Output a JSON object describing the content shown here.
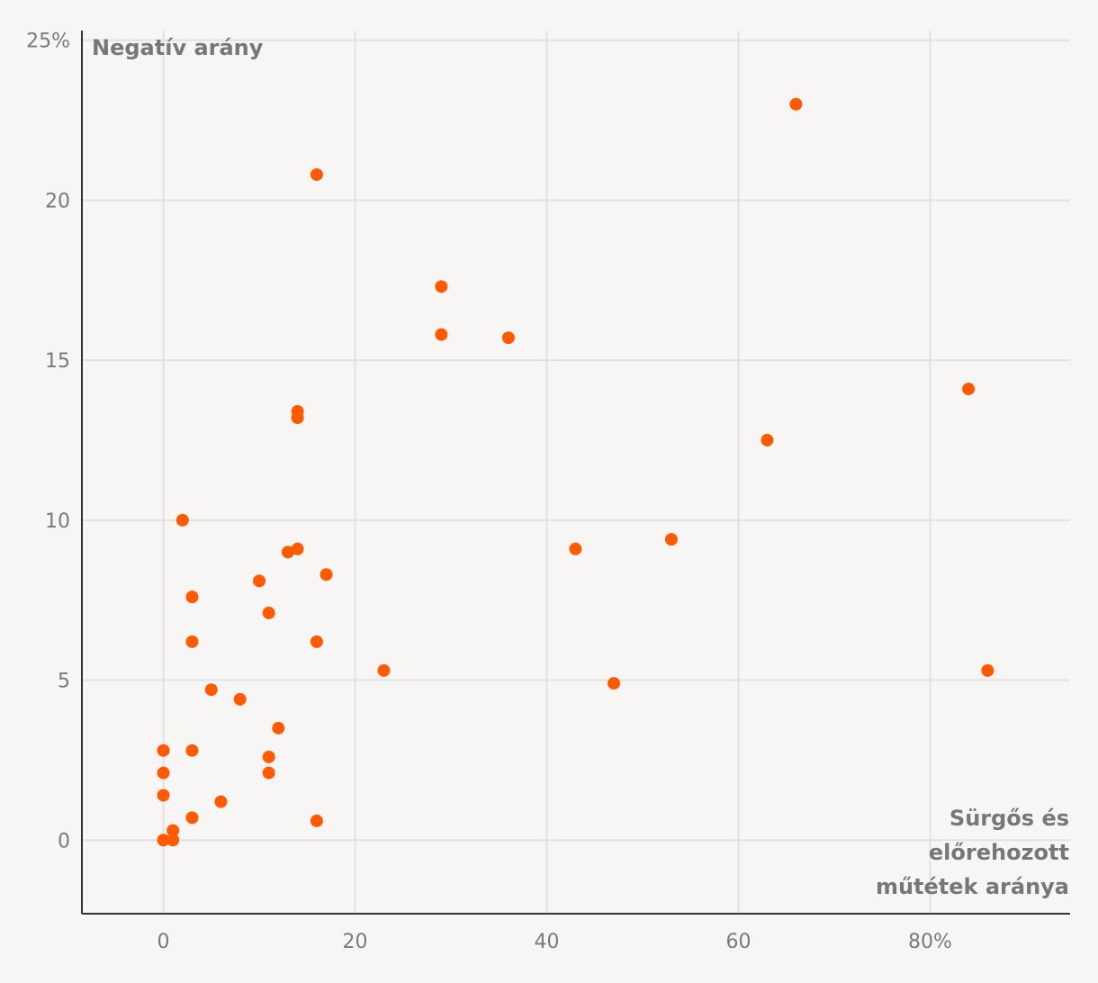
{
  "chart_data": {
    "type": "scatter",
    "ylabel": "Negatív arány",
    "xlabel_lines": [
      "Sürgős és",
      "előrehozott",
      "műtétek aránya"
    ],
    "x_ticks": [
      {
        "value": 0,
        "label": "0"
      },
      {
        "value": 20,
        "label": "20"
      },
      {
        "value": 40,
        "label": "40"
      },
      {
        "value": 60,
        "label": "60"
      },
      {
        "value": 80,
        "label": "80%"
      }
    ],
    "y_ticks": [
      {
        "value": 0,
        "label": "0"
      },
      {
        "value": 5,
        "label": "5"
      },
      {
        "value": 10,
        "label": "10"
      },
      {
        "value": 15,
        "label": "15"
      },
      {
        "value": 20,
        "label": "20"
      },
      {
        "value": 25,
        "label": "25%"
      }
    ],
    "xlim": [
      -8.5,
      94.6
    ],
    "ylim": [
      -2.3,
      25.3
    ],
    "grid": true,
    "marker_color": "#ff5a00",
    "gridline_color": "#e1e1e1",
    "axis_color": "#333333",
    "points": [
      {
        "x": 66,
        "y": 23.0
      },
      {
        "x": 16,
        "y": 20.8
      },
      {
        "x": 29,
        "y": 17.3
      },
      {
        "x": 29,
        "y": 15.8
      },
      {
        "x": 36,
        "y": 15.7
      },
      {
        "x": 84,
        "y": 14.1
      },
      {
        "x": 14,
        "y": 13.4
      },
      {
        "x": 14,
        "y": 13.2
      },
      {
        "x": 63,
        "y": 12.5
      },
      {
        "x": 2,
        "y": 10.0
      },
      {
        "x": 53,
        "y": 9.4
      },
      {
        "x": 14,
        "y": 9.1
      },
      {
        "x": 43,
        "y": 9.1
      },
      {
        "x": 13,
        "y": 9.0
      },
      {
        "x": 17,
        "y": 8.3
      },
      {
        "x": 10,
        "y": 8.1
      },
      {
        "x": 3,
        "y": 7.6
      },
      {
        "x": 11,
        "y": 7.1
      },
      {
        "x": 3,
        "y": 6.2
      },
      {
        "x": 16,
        "y": 6.2
      },
      {
        "x": 23,
        "y": 5.3
      },
      {
        "x": 86,
        "y": 5.3
      },
      {
        "x": 47,
        "y": 4.9
      },
      {
        "x": 5,
        "y": 4.7
      },
      {
        "x": 8,
        "y": 4.4
      },
      {
        "x": 12,
        "y": 3.5
      },
      {
        "x": 0,
        "y": 2.8
      },
      {
        "x": 3,
        "y": 2.8
      },
      {
        "x": 11,
        "y": 2.6
      },
      {
        "x": 0,
        "y": 2.1
      },
      {
        "x": 11,
        "y": 2.1
      },
      {
        "x": 0,
        "y": 1.4
      },
      {
        "x": 6,
        "y": 1.2
      },
      {
        "x": 3,
        "y": 0.7
      },
      {
        "x": 16,
        "y": 0.6
      },
      {
        "x": 1,
        "y": 0.3
      },
      {
        "x": 0,
        "y": 0.0
      },
      {
        "x": 1,
        "y": 0.0
      }
    ]
  }
}
